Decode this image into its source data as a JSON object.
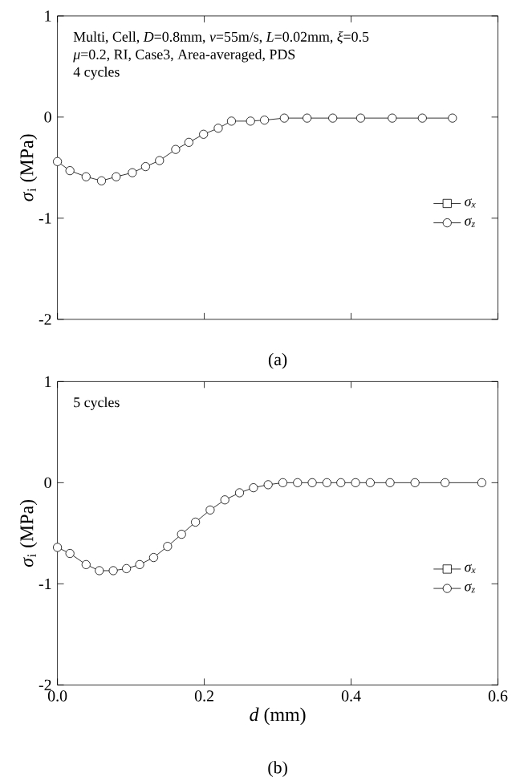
{
  "chart_data": [
    {
      "type": "line",
      "ylabel": "*σ*$_{i}$ (MPa)",
      "x": [
        0,
        0.017,
        0.039,
        0.06,
        0.08,
        0.102,
        0.12,
        0.139,
        0.161,
        0.179,
        0.199,
        0.219,
        0.237,
        0.263,
        0.282,
        0.309,
        0.34,
        0.375,
        0.413,
        0.456,
        0.497,
        0.538
      ],
      "series": [
        {
          "name": "*σ*$_{x}$",
          "color": "#000000",
          "marker": "square",
          "values": [
            null,
            null,
            null,
            null,
            null,
            null,
            null,
            null,
            null,
            null,
            null,
            null,
            null,
            null,
            null,
            null,
            null,
            null,
            null,
            null,
            null,
            null
          ]
        },
        {
          "name": "*σ*$_{z}$",
          "color": "#000000",
          "marker": "circle",
          "values": [
            -0.44,
            -0.53,
            -0.59,
            -0.63,
            -0.59,
            -0.55,
            -0.49,
            -0.43,
            -0.32,
            -0.25,
            -0.17,
            -0.11,
            -0.04,
            -0.04,
            -0.03,
            -0.01,
            -0.01,
            -0.01,
            -0.01,
            -0.01,
            -0.01,
            -0.01
          ]
        }
      ],
      "xlim": [
        0,
        0.6
      ],
      "ylim": [
        -2,
        1
      ],
      "xticks": [
        {
          "value": 0,
          "label": null
        },
        {
          "value": 0.2,
          "label": null
        },
        {
          "value": 0.4,
          "label": null
        },
        {
          "value": 0.6,
          "label": null
        }
      ],
      "yticks": [
        -2,
        -1,
        0,
        1
      ],
      "tick_labels": "y",
      "legend": "right",
      "annotations": [
        "Multi, Cell, *D*=0.8mm, *v*=55m/s, *L*=0.02mm, *ξ*=0.5",
        "*μ*=0.2, RI, Case3, Area-averaged, PDS",
        "4 cycles",
        "(a)"
      ]
    },
    {
      "type": "line",
      "xlabel": "*d* (mm)",
      "ylabel": "*σ*$_{i}$ (MPa)",
      "x": [
        0,
        0.017,
        0.039,
        0.057,
        0.076,
        0.094,
        0.112,
        0.131,
        0.15,
        0.169,
        0.188,
        0.208,
        0.228,
        0.248,
        0.267,
        0.287,
        0.307,
        0.327,
        0.347,
        0.367,
        0.386,
        0.406,
        0.426,
        0.453,
        0.487,
        0.528,
        0.578
      ],
      "series": [
        {
          "name": "*σ*$_{x}$",
          "color": "#000000",
          "marker": "square",
          "values": [
            null,
            null,
            null,
            null,
            null,
            null,
            null,
            null,
            null,
            null,
            null,
            null,
            null,
            null,
            null,
            null,
            null,
            null,
            null,
            null,
            null,
            null,
            null,
            null,
            null,
            null,
            null
          ]
        },
        {
          "name": "*σ*$_{z}$",
          "color": "#000000",
          "marker": "circle",
          "values": [
            -0.64,
            -0.7,
            -0.81,
            -0.87,
            -0.87,
            -0.85,
            -0.81,
            -0.74,
            -0.63,
            -0.51,
            -0.39,
            -0.27,
            -0.17,
            -0.1,
            -0.05,
            -0.02,
            0,
            0,
            0,
            0,
            0,
            0,
            0,
            0,
            0,
            0,
            0
          ]
        }
      ],
      "xlim": [
        0,
        0.6
      ],
      "ylim": [
        -2,
        1
      ],
      "xticks": [
        {
          "value": 0,
          "label": "0.0"
        },
        {
          "value": 0.2,
          "label": "0.2"
        },
        {
          "value": 0.4,
          "label": "0.4"
        },
        {
          "value": 0.6,
          "label": "0.6"
        }
      ],
      "yticks": [
        -2,
        -1,
        0,
        1
      ],
      "legend": "right",
      "annotations": [
        "5 cycles",
        "(b)"
      ]
    }
  ]
}
